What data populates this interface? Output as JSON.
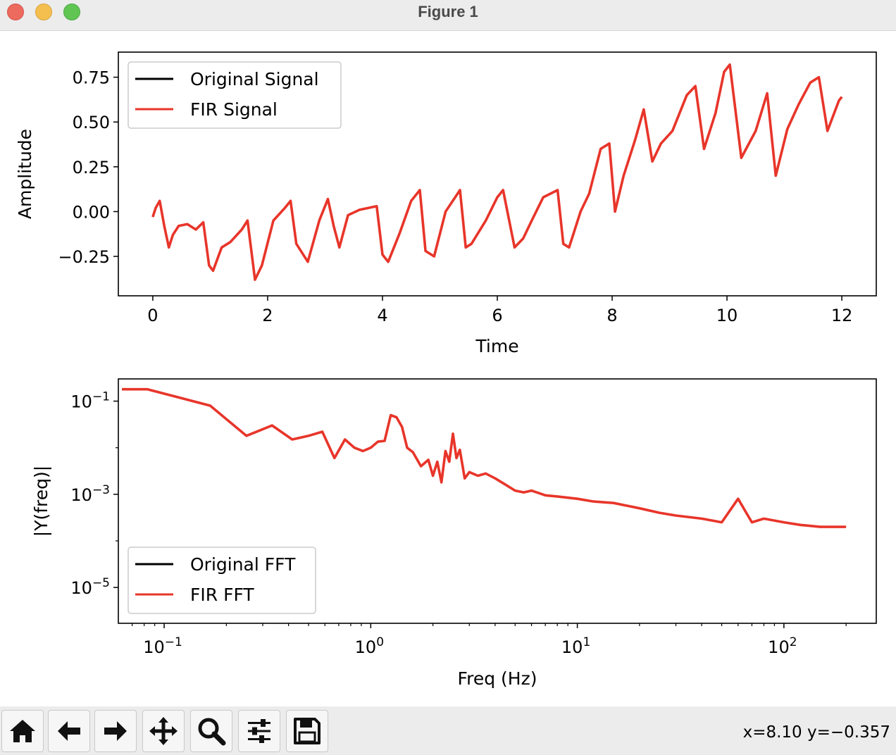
{
  "window": {
    "title": "Figure 1"
  },
  "toolbar": {
    "buttons": [
      {
        "icon": "home-icon"
      },
      {
        "icon": "back-arrow-icon"
      },
      {
        "icon": "forward-arrow-icon"
      },
      {
        "icon": "pan-move-icon"
      },
      {
        "icon": "zoom-magnifier-icon"
      },
      {
        "icon": "subplots-sliders-icon"
      },
      {
        "icon": "save-floppy-icon"
      }
    ],
    "coords": "x=8.10 y=−0.357"
  },
  "colors": {
    "original": "#000000",
    "fir": "#e8352a",
    "axes": "#000000"
  },
  "chart_data": [
    {
      "type": "line",
      "xlabel": "Time",
      "ylabel": "Amplitude",
      "xlim": [
        -0.6,
        12.6
      ],
      "ylim": [
        -0.47,
        0.89
      ],
      "xticks": [
        0,
        2,
        4,
        6,
        8,
        10,
        12
      ],
      "xtick_labels": [
        "0",
        "2",
        "4",
        "6",
        "8",
        "10",
        "12"
      ],
      "yticks": [
        -0.25,
        0.0,
        0.25,
        0.5,
        0.75
      ],
      "ytick_labels": [
        "−0.25",
        "0.00",
        "0.25",
        "0.50",
        "0.75"
      ],
      "legend": {
        "position": "upper left",
        "entries": [
          "Original Signal",
          "FIR Signal"
        ]
      },
      "series": [
        {
          "name": "Original Signal",
          "color": "#000000",
          "x": [
            0,
            0.05,
            0.12,
            0.2,
            0.28,
            0.35,
            0.45,
            0.6,
            0.75,
            0.88,
            0.98,
            1.05,
            1.2,
            1.35,
            1.55,
            1.65,
            1.78,
            1.9,
            2.1,
            2.3,
            2.4,
            2.5,
            2.7,
            2.9,
            3.05,
            3.15,
            3.25,
            3.4,
            3.6,
            3.9,
            4.0,
            4.1,
            4.3,
            4.5,
            4.65,
            4.75,
            4.9,
            5.1,
            5.35,
            5.45,
            5.55,
            5.8,
            6.0,
            6.1,
            6.3,
            6.45,
            6.6,
            6.8,
            7.05,
            7.15,
            7.25,
            7.45,
            7.6,
            7.8,
            7.95,
            8.05,
            8.2,
            8.4,
            8.55,
            8.7,
            8.85,
            9.05,
            9.3,
            9.45,
            9.6,
            9.8,
            9.95,
            10.05,
            10.25,
            10.5,
            10.7,
            10.85,
            11.05,
            11.25,
            11.45,
            11.6,
            11.75,
            11.95,
            12.0
          ],
          "y": [
            -0.03,
            0.02,
            0.06,
            -0.08,
            -0.2,
            -0.13,
            -0.08,
            -0.07,
            -0.1,
            -0.06,
            -0.3,
            -0.33,
            -0.2,
            -0.17,
            -0.1,
            -0.05,
            -0.38,
            -0.3,
            -0.05,
            0.02,
            0.06,
            -0.18,
            -0.28,
            -0.05,
            0.07,
            -0.08,
            -0.2,
            -0.02,
            0.01,
            0.03,
            -0.24,
            -0.28,
            -0.12,
            0.06,
            0.12,
            -0.22,
            -0.25,
            0.0,
            0.12,
            -0.2,
            -0.18,
            -0.05,
            0.08,
            0.12,
            -0.2,
            -0.15,
            -0.05,
            0.08,
            0.12,
            -0.18,
            -0.2,
            0.0,
            0.1,
            0.35,
            0.38,
            0.0,
            0.2,
            0.4,
            0.57,
            0.28,
            0.38,
            0.45,
            0.65,
            0.7,
            0.35,
            0.55,
            0.78,
            0.82,
            0.3,
            0.45,
            0.66,
            0.2,
            0.46,
            0.6,
            0.72,
            0.75,
            0.45,
            0.62,
            0.64
          ]
        },
        {
          "name": "FIR Signal",
          "color": "#e8352a",
          "x": [
            0,
            0.05,
            0.12,
            0.2,
            0.28,
            0.35,
            0.45,
            0.6,
            0.75,
            0.88,
            0.98,
            1.05,
            1.2,
            1.35,
            1.55,
            1.65,
            1.78,
            1.9,
            2.1,
            2.3,
            2.4,
            2.5,
            2.7,
            2.9,
            3.05,
            3.15,
            3.25,
            3.4,
            3.6,
            3.9,
            4.0,
            4.1,
            4.3,
            4.5,
            4.65,
            4.75,
            4.9,
            5.1,
            5.35,
            5.45,
            5.55,
            5.8,
            6.0,
            6.1,
            6.3,
            6.45,
            6.6,
            6.8,
            7.05,
            7.15,
            7.25,
            7.45,
            7.6,
            7.8,
            7.95,
            8.05,
            8.2,
            8.4,
            8.55,
            8.7,
            8.85,
            9.05,
            9.3,
            9.45,
            9.6,
            9.8,
            9.95,
            10.05,
            10.25,
            10.5,
            10.7,
            10.85,
            11.05,
            11.25,
            11.45,
            11.6,
            11.75,
            11.95,
            12.0
          ],
          "y": [
            -0.03,
            0.02,
            0.06,
            -0.08,
            -0.2,
            -0.13,
            -0.08,
            -0.07,
            -0.1,
            -0.06,
            -0.3,
            -0.33,
            -0.2,
            -0.17,
            -0.1,
            -0.05,
            -0.38,
            -0.3,
            -0.05,
            0.02,
            0.06,
            -0.18,
            -0.28,
            -0.05,
            0.07,
            -0.08,
            -0.2,
            -0.02,
            0.01,
            0.03,
            -0.24,
            -0.28,
            -0.12,
            0.06,
            0.12,
            -0.22,
            -0.25,
            0.0,
            0.12,
            -0.2,
            -0.18,
            -0.05,
            0.08,
            0.12,
            -0.2,
            -0.15,
            -0.05,
            0.08,
            0.12,
            -0.18,
            -0.2,
            0.0,
            0.1,
            0.35,
            0.38,
            0.0,
            0.2,
            0.4,
            0.57,
            0.28,
            0.38,
            0.45,
            0.65,
            0.7,
            0.35,
            0.55,
            0.78,
            0.82,
            0.3,
            0.45,
            0.66,
            0.2,
            0.46,
            0.6,
            0.72,
            0.75,
            0.45,
            0.62,
            0.64
          ]
        }
      ]
    },
    {
      "type": "line",
      "xlabel": "Freq (Hz)",
      "ylabel": "|Y(freq)|",
      "xscale": "log",
      "yscale": "log",
      "xlim": [
        0.06,
        280
      ],
      "ylim": [
        1.7e-06,
        0.3
      ],
      "xticks": [
        0.1,
        1,
        10,
        100
      ],
      "xtick_labels": [
        {
          "base": "10",
          "exp": "−1"
        },
        {
          "base": "10",
          "exp": "0"
        },
        {
          "base": "10",
          "exp": "1"
        },
        {
          "base": "10",
          "exp": "2"
        }
      ],
      "yticks": [
        1e-05,
        0.001,
        0.1
      ],
      "ytick_labels": [
        {
          "base": "10",
          "exp": "−5"
        },
        {
          "base": "10",
          "exp": "−3"
        },
        {
          "base": "10",
          "exp": "−1"
        }
      ],
      "legend": {
        "position": "lower left",
        "entries": [
          "Original FFT",
          "FIR FFT"
        ]
      },
      "series": [
        {
          "name": "Original FFT",
          "color": "#000000",
          "x": [
            0.0625,
            0.083,
            0.167,
            0.25,
            0.333,
            0.417,
            0.5,
            0.583,
            0.667,
            0.75,
            0.833,
            0.917,
            1.0,
            1.083,
            1.167,
            1.25,
            1.333,
            1.417,
            1.5,
            1.6,
            1.75,
            1.9,
            2.0,
            2.1,
            2.2,
            2.3,
            2.4,
            2.5,
            2.6,
            2.7,
            2.85,
            3.0,
            3.3,
            3.6,
            4.0,
            4.5,
            5.0,
            5.5,
            6.0,
            7.0,
            8.0,
            10,
            12,
            15,
            20,
            25,
            30,
            40,
            50,
            60,
            70,
            80,
            100,
            120,
            150,
            200
          ],
          "y": [
            0.18,
            0.18,
            0.08,
            0.018,
            0.03,
            0.015,
            0.018,
            0.022,
            0.006,
            0.015,
            0.01,
            0.0085,
            0.01,
            0.0135,
            0.014,
            0.05,
            0.045,
            0.028,
            0.01,
            0.008,
            0.004,
            0.0055,
            0.0025,
            0.005,
            0.0018,
            0.0085,
            0.005,
            0.02,
            0.006,
            0.009,
            0.0022,
            0.003,
            0.0025,
            0.0028,
            0.0022,
            0.0016,
            0.0012,
            0.0011,
            0.0012,
            0.00095,
            0.0009,
            0.0008,
            0.0007,
            0.00065,
            0.0005,
            0.0004,
            0.00035,
            0.0003,
            0.00025,
            0.0008,
            0.00025,
            0.0003,
            0.00025,
            0.00022,
            0.0002,
            0.0002
          ]
        },
        {
          "name": "FIR FFT",
          "color": "#e8352a",
          "x": [
            0.0625,
            0.083,
            0.167,
            0.25,
            0.333,
            0.417,
            0.5,
            0.583,
            0.667,
            0.75,
            0.833,
            0.917,
            1.0,
            1.083,
            1.167,
            1.25,
            1.333,
            1.417,
            1.5,
            1.6,
            1.75,
            1.9,
            2.0,
            2.1,
            2.2,
            2.3,
            2.4,
            2.5,
            2.6,
            2.7,
            2.85,
            3.0,
            3.3,
            3.6,
            4.0,
            4.5,
            5.0,
            5.5,
            6.0,
            7.0,
            8.0,
            10,
            12,
            15,
            20,
            25,
            30,
            40,
            50,
            60,
            70,
            80,
            100,
            120,
            150,
            200
          ],
          "y": [
            0.18,
            0.18,
            0.08,
            0.018,
            0.03,
            0.015,
            0.018,
            0.022,
            0.006,
            0.015,
            0.01,
            0.0085,
            0.01,
            0.0135,
            0.014,
            0.05,
            0.045,
            0.028,
            0.01,
            0.008,
            0.004,
            0.0055,
            0.0025,
            0.005,
            0.0018,
            0.0085,
            0.005,
            0.02,
            0.006,
            0.009,
            0.0022,
            0.003,
            0.0025,
            0.0028,
            0.0022,
            0.0016,
            0.0012,
            0.0011,
            0.0012,
            0.00095,
            0.0009,
            0.0008,
            0.0007,
            0.00065,
            0.0005,
            0.0004,
            0.00035,
            0.0003,
            0.00025,
            0.0008,
            0.00025,
            0.0003,
            0.00025,
            0.00022,
            0.0002,
            0.0002
          ]
        }
      ]
    }
  ]
}
